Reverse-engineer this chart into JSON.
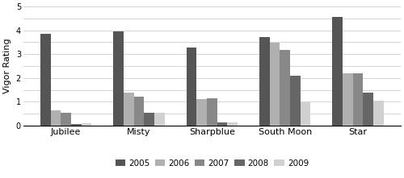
{
  "cultivars": [
    "Jubilee",
    "Misty",
    "Sharpblue",
    "South Moon",
    "Star"
  ],
  "years": [
    "2005",
    "2006",
    "2007",
    "2008",
    "2009"
  ],
  "values": {
    "Jubilee": [
      3.85,
      0.65,
      0.55,
      0.05,
      0.08
    ],
    "Misty": [
      3.95,
      1.4,
      1.2,
      0.52,
      0.52
    ],
    "Sharpblue": [
      3.28,
      1.1,
      1.15,
      0.12,
      0.12
    ],
    "South Moon": [
      3.72,
      3.48,
      3.18,
      2.1,
      0.97
    ],
    "Star": [
      4.58,
      2.2,
      2.2,
      1.38,
      1.03
    ]
  },
  "colors": [
    "#555555",
    "#b0b0b0",
    "#888888",
    "#666666",
    "#d0d0d0"
  ],
  "ylabel": "Vigor Rating",
  "ylim": [
    0,
    5
  ],
  "yticks": [
    0,
    0.5,
    1,
    1.5,
    2,
    2.5,
    3,
    3.5,
    4,
    4.5,
    5
  ],
  "ytick_labels": [
    "0",
    "",
    "1",
    "",
    "2",
    "",
    "3",
    "",
    "4",
    "",
    "5"
  ],
  "legend_labels": [
    "2005",
    "2006",
    "2007",
    "2008",
    "2009"
  ],
  "bar_width": 0.14,
  "background_color": "#ffffff",
  "grid_color": "#cccccc"
}
